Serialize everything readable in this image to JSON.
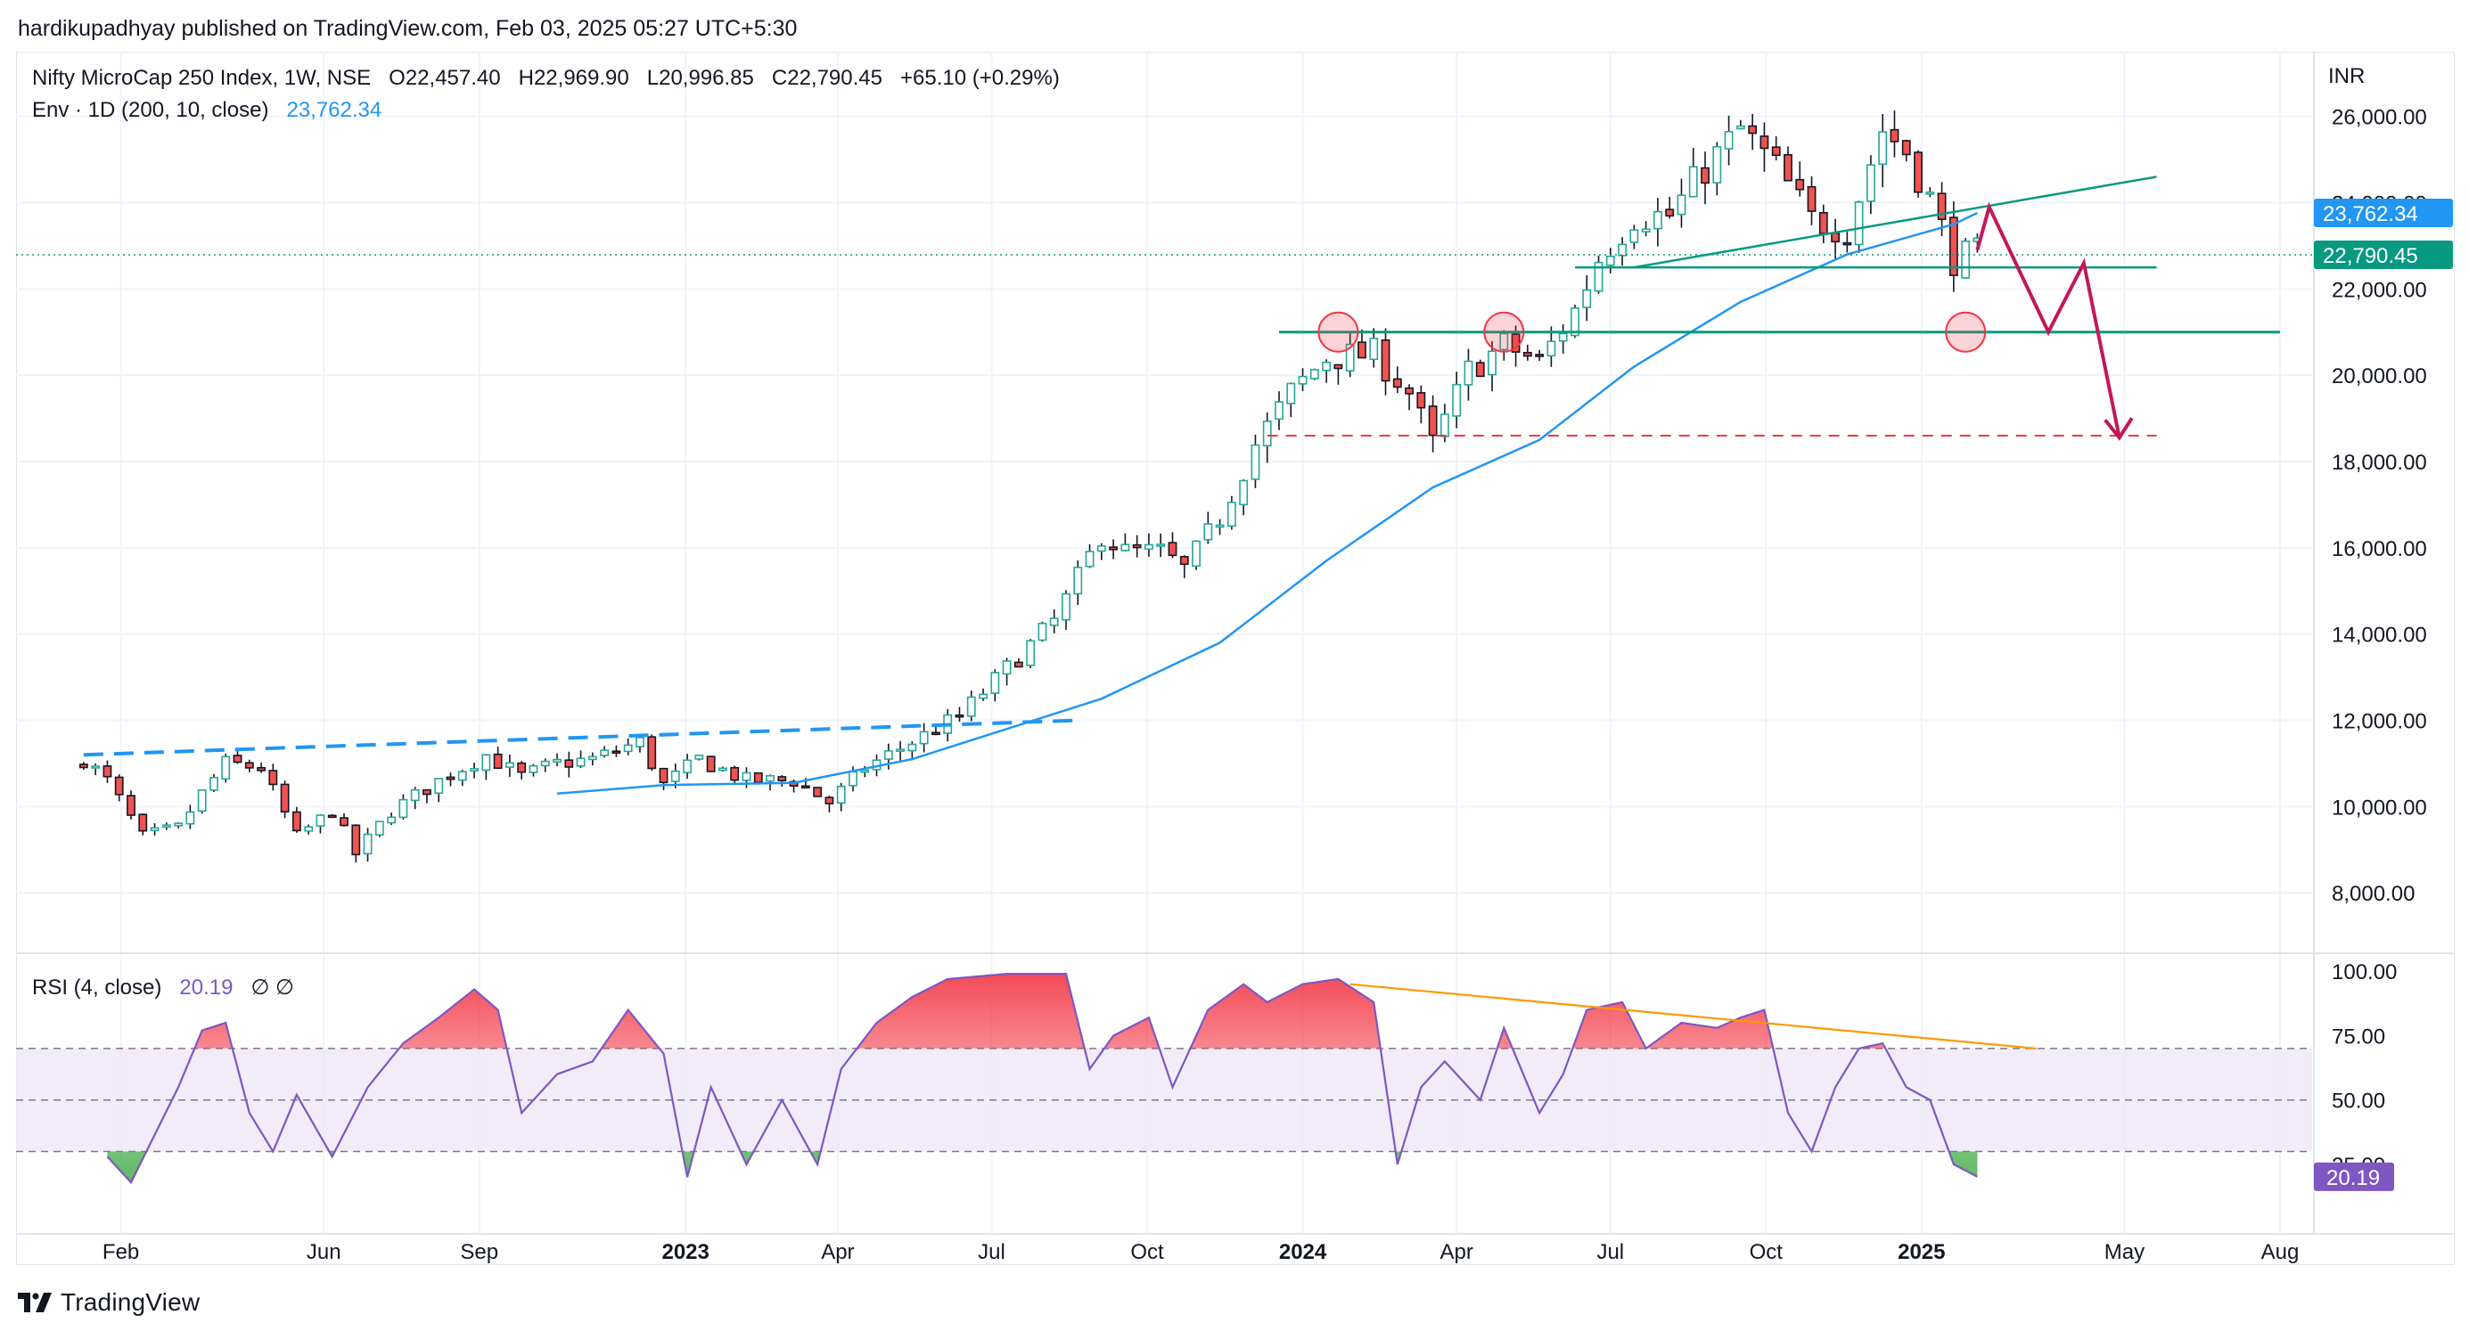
{
  "publisher_line": "hardikupadhyay published on TradingView.com, Feb 03, 2025 05:27 UTC+5:30",
  "header": {
    "symbol": "Nifty MicroCap 250 Index, 1W, NSE",
    "open": "O22,457.40",
    "high": "H22,969.90",
    "low": "L20,996.85",
    "close": "C22,790.45",
    "change": "+65.10 (+0.29%)",
    "env_label": "Env · 1D (200, 10, close)",
    "env_value": "23,762.34",
    "rsi_label": "RSI (4, close)",
    "rsi_value": "20.19",
    "rsi_extra": "∅  ∅"
  },
  "currency": "INR",
  "footer": {
    "brand": "TradingView",
    "logo_icon": "tradingview-logo-icon"
  },
  "colors": {
    "up": "#26a69a",
    "down": "#ef5350",
    "envelope": "#2196f3",
    "support": "#089981",
    "projection": "#c2185b",
    "rsi": "#7e57c2",
    "rsi_band": "#ede7f6",
    "trend_dashed": "#2962ff",
    "rsi_trend": "#ff9800",
    "target": "#f23645"
  },
  "chart_data": [
    {
      "type": "candlestick",
      "title": "Nifty MicroCap 250 Index, 1W, NSE",
      "y_ticks": [
        8000,
        10000,
        12000,
        14000,
        16000,
        18000,
        20000,
        22000,
        24000,
        26000
      ],
      "y_tick_labels": [
        "8,000.00",
        "10,000.00",
        "12,000.00",
        "14,000.00",
        "16,000.00",
        "18,000.00",
        "20,000.00",
        "22,000.00",
        "24,000.00",
        "26,000.00"
      ],
      "ylim": [
        6600,
        27500
      ],
      "x_ticks": [
        {
          "label": "Feb",
          "date": "2022-02-01",
          "bold": false
        },
        {
          "label": "Jun",
          "date": "2022-06-01",
          "bold": false
        },
        {
          "label": "Sep",
          "date": "2022-09-01",
          "bold": false
        },
        {
          "label": "2023",
          "date": "2023-01-01",
          "bold": true
        },
        {
          "label": "Apr",
          "date": "2023-04-01",
          "bold": false
        },
        {
          "label": "Jul",
          "date": "2023-07-01",
          "bold": false
        },
        {
          "label": "Oct",
          "date": "2023-10-01",
          "bold": false
        },
        {
          "label": "2024",
          "date": "2024-01-01",
          "bold": true
        },
        {
          "label": "Apr",
          "date": "2024-04-01",
          "bold": false
        },
        {
          "label": "Jul",
          "date": "2024-07-01",
          "bold": false
        },
        {
          "label": "Oct",
          "date": "2024-10-01",
          "bold": false
        },
        {
          "label": "2025",
          "date": "2025-01-01",
          "bold": true
        },
        {
          "label": "May",
          "date": "2025-05-01",
          "bold": false
        },
        {
          "label": "Aug",
          "date": "2025-08-01",
          "bold": false
        }
      ],
      "xlim": [
        "2021-12-01",
        "2025-08-20"
      ],
      "grid": true,
      "price_labels": [
        {
          "text": "23,762.34",
          "value": 23762.34,
          "color": "#2196f3"
        },
        {
          "text": "22,790.45",
          "value": 22790.45,
          "color": "#089981"
        }
      ],
      "close_line": 22790.45,
      "candles_anchors": [
        [
          "2022-01-10",
          11100
        ],
        [
          "2022-01-24",
          10600
        ],
        [
          "2022-02-14",
          9300
        ],
        [
          "2022-03-07",
          9500
        ],
        [
          "2022-03-21",
          10300
        ],
        [
          "2022-04-04",
          11000
        ],
        [
          "2022-04-25",
          10900
        ],
        [
          "2022-05-16",
          9300
        ],
        [
          "2022-06-06",
          9900
        ],
        [
          "2022-06-20",
          8900
        ],
        [
          "2022-07-11",
          9900
        ],
        [
          "2022-08-08",
          10600
        ],
        [
          "2022-09-05",
          11200
        ],
        [
          "2022-09-26",
          10700
        ],
        [
          "2022-10-17",
          11000
        ],
        [
          "2022-11-07",
          11100
        ],
        [
          "2022-12-05",
          11500
        ],
        [
          "2022-12-19",
          10500
        ],
        [
          "2023-01-09",
          11100
        ],
        [
          "2023-02-06",
          10600
        ],
        [
          "2023-03-06",
          10600
        ],
        [
          "2023-03-27",
          10100
        ],
        [
          "2023-04-17",
          10900
        ],
        [
          "2023-05-15",
          11500
        ],
        [
          "2023-06-12",
          12100
        ],
        [
          "2023-07-10",
          13200
        ],
        [
          "2023-08-07",
          14300
        ],
        [
          "2023-09-04",
          16300
        ],
        [
          "2023-09-18",
          15900
        ],
        [
          "2023-10-09",
          15900
        ],
        [
          "2023-10-23",
          15500
        ],
        [
          "2023-11-13",
          16700
        ],
        [
          "2023-12-04",
          18400
        ],
        [
          "2023-12-25",
          19600
        ],
        [
          "2024-01-15",
          20400
        ],
        [
          "2024-02-12",
          20500
        ],
        [
          "2024-03-04",
          19600
        ],
        [
          "2024-03-18",
          18400
        ],
        [
          "2024-04-08",
          20100
        ],
        [
          "2024-04-29",
          20700
        ],
        [
          "2024-05-20",
          20300
        ],
        [
          "2024-06-10",
          21500
        ],
        [
          "2024-06-24",
          22700
        ],
        [
          "2024-07-15",
          23700
        ],
        [
          "2024-08-05",
          23700
        ],
        [
          "2024-08-26",
          24800
        ],
        [
          "2024-09-16",
          25700
        ],
        [
          "2024-10-07",
          24800
        ],
        [
          "2024-10-28",
          23600
        ],
        [
          "2024-11-18",
          23400
        ],
        [
          "2024-12-09",
          25700
        ],
        [
          "2024-12-23",
          25200
        ],
        [
          "2025-01-06",
          24100
        ],
        [
          "2025-01-20",
          22700
        ],
        [
          "2025-02-03",
          22790
        ]
      ],
      "envelope_anchors": [
        [
          "2022-10-17",
          10300
        ],
        [
          "2022-12-19",
          10500
        ],
        [
          "2023-03-06",
          10550
        ],
        [
          "2023-05-15",
          11100
        ],
        [
          "2023-07-10",
          11800
        ],
        [
          "2023-09-04",
          12500
        ],
        [
          "2023-11-13",
          13800
        ],
        [
          "2024-01-15",
          15700
        ],
        [
          "2024-03-18",
          17400
        ],
        [
          "2024-05-20",
          18500
        ],
        [
          "2024-07-15",
          20200
        ],
        [
          "2024-09-16",
          21700
        ],
        [
          "2024-11-18",
          22800
        ],
        [
          "2025-01-20",
          23500
        ],
        [
          "2025-02-03",
          23762
        ]
      ],
      "annotations": {
        "dashed_trendline": [
          [
            "2022-01-10",
            11200
          ],
          [
            "2023-08-21",
            12000
          ]
        ],
        "rising_support": [
          [
            "2024-07-15",
            22500
          ],
          [
            "2025-05-20",
            24600
          ]
        ],
        "support_upper": {
          "value": 22500,
          "from": "2024-06-10",
          "to": "2025-05-20"
        },
        "support_lower": {
          "value": 21000,
          "from": "2023-12-18",
          "to": "2025-08-01"
        },
        "target_dashed": {
          "value": 18600,
          "from": "2023-12-11",
          "to": "2025-05-20"
        },
        "circles": [
          [
            "2024-01-22",
            21000
          ],
          [
            "2024-04-29",
            21000
          ],
          [
            "2025-01-27",
            21000
          ]
        ],
        "projection_path": [
          [
            "2025-02-03",
            22900
          ],
          [
            "2025-02-10",
            23900
          ],
          [
            "2025-03-17",
            21000
          ],
          [
            "2025-04-07",
            22600
          ],
          [
            "2025-04-28",
            18550
          ]
        ]
      }
    },
    {
      "type": "line",
      "title": "RSI (4, close)",
      "series": [
        {
          "name": "RSI (4, close)",
          "last": 20.19
        }
      ],
      "y_ticks": [
        25,
        50,
        75,
        100
      ],
      "y_tick_labels": [
        "25.00",
        "50.00",
        "75.00",
        "100.00"
      ],
      "ylim": [
        -2,
        107
      ],
      "bands": {
        "upper": 70,
        "middle": 50,
        "lower": 30
      },
      "value_label": "20.19",
      "rsi_anchors": [
        [
          "2022-01-24",
          28
        ],
        [
          "2022-02-07",
          18
        ],
        [
          "2022-03-07",
          55
        ],
        [
          "2022-03-21",
          77
        ],
        [
          "2022-04-04",
          80
        ],
        [
          "2022-04-18",
          45
        ],
        [
          "2022-05-02",
          30
        ],
        [
          "2022-05-16",
          52
        ],
        [
          "2022-06-06",
          28
        ],
        [
          "2022-06-27",
          55
        ],
        [
          "2022-07-18",
          72
        ],
        [
          "2022-08-08",
          82
        ],
        [
          "2022-08-29",
          93
        ],
        [
          "2022-09-12",
          85
        ],
        [
          "2022-09-26",
          45
        ],
        [
          "2022-10-17",
          60
        ],
        [
          "2022-11-07",
          65
        ],
        [
          "2022-11-28",
          85
        ],
        [
          "2022-12-19",
          68
        ],
        [
          "2023-01-02",
          20
        ],
        [
          "2023-01-16",
          55
        ],
        [
          "2023-02-06",
          25
        ],
        [
          "2023-02-27",
          50
        ],
        [
          "2023-03-20",
          25
        ],
        [
          "2023-04-03",
          62
        ],
        [
          "2023-04-24",
          80
        ],
        [
          "2023-05-15",
          90
        ],
        [
          "2023-06-05",
          97
        ],
        [
          "2023-07-10",
          99
        ],
        [
          "2023-08-14",
          99
        ],
        [
          "2023-08-28",
          62
        ],
        [
          "2023-09-11",
          75
        ],
        [
          "2023-10-02",
          82
        ],
        [
          "2023-10-16",
          55
        ],
        [
          "2023-11-06",
          85
        ],
        [
          "2023-11-27",
          95
        ],
        [
          "2023-12-11",
          88
        ],
        [
          "2024-01-01",
          95
        ],
        [
          "2024-01-22",
          97
        ],
        [
          "2024-02-12",
          88
        ],
        [
          "2024-02-26",
          25
        ],
        [
          "2024-03-11",
          55
        ],
        [
          "2024-03-25",
          65
        ],
        [
          "2024-04-15",
          50
        ],
        [
          "2024-04-29",
          78
        ],
        [
          "2024-05-20",
          45
        ],
        [
          "2024-06-03",
          60
        ],
        [
          "2024-06-17",
          85
        ],
        [
          "2024-07-08",
          88
        ],
        [
          "2024-07-22",
          70
        ],
        [
          "2024-08-12",
          80
        ],
        [
          "2024-09-02",
          78
        ],
        [
          "2024-09-16",
          82
        ],
        [
          "2024-09-30",
          85
        ],
        [
          "2024-10-14",
          45
        ],
        [
          "2024-10-28",
          30
        ],
        [
          "2024-11-11",
          55
        ],
        [
          "2024-11-25",
          70
        ],
        [
          "2024-12-09",
          72
        ],
        [
          "2024-12-23",
          55
        ],
        [
          "2025-01-06",
          50
        ],
        [
          "2025-01-20",
          25
        ],
        [
          "2025-02-03",
          20.19
        ]
      ],
      "trendline": [
        [
          "2024-01-29",
          95
        ],
        [
          "2025-03-10",
          70
        ]
      ]
    }
  ]
}
